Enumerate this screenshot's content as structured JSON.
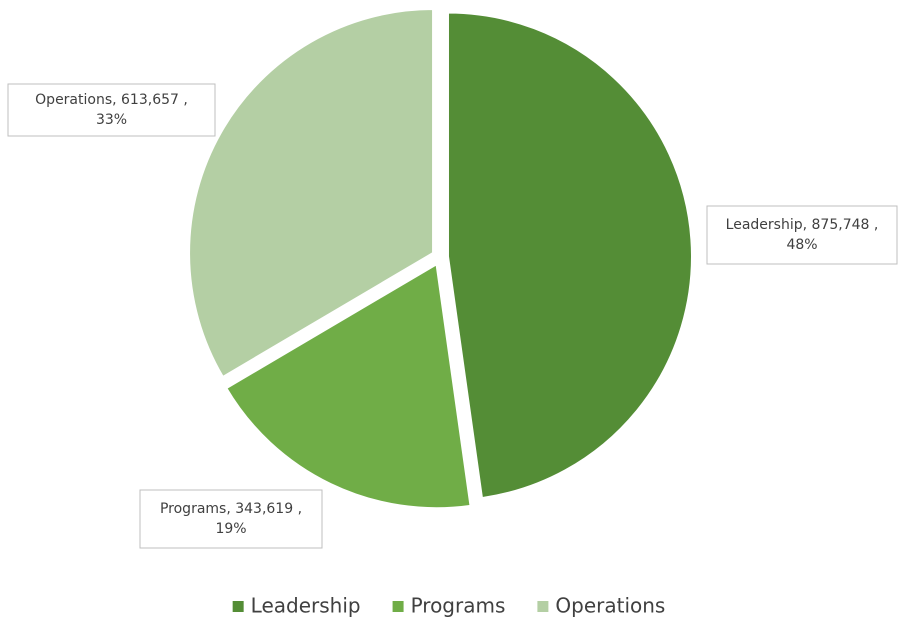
{
  "chart_data": {
    "type": "pie",
    "categories": [
      "Leadership",
      "Programs",
      "Operations"
    ],
    "values": [
      875748,
      343619,
      613657
    ],
    "value_labels": [
      [
        "Leadership, 875,748 ,",
        "48%"
      ],
      [
        "Programs, 343,619 ,",
        "19%"
      ],
      [
        "Operations, 613,657 ,",
        "33%"
      ]
    ],
    "colors": [
      "#548d36",
      "#70ad47",
      "#b4cfa4"
    ],
    "legend": "bottom"
  }
}
